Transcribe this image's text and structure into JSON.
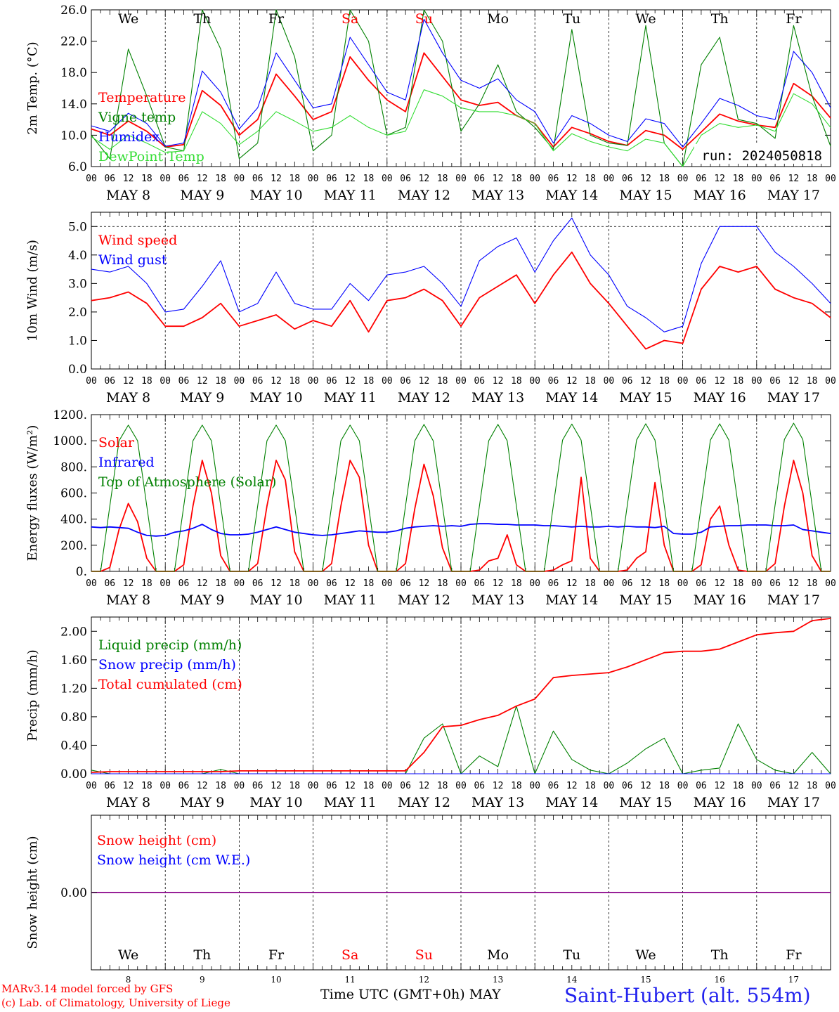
{
  "run_label": "run: 2024050818",
  "days": [
    {
      "abbr": "We",
      "date": "MAY  8",
      "num": "8",
      "weekend": false
    },
    {
      "abbr": "Th",
      "date": "MAY  9",
      "num": "9",
      "weekend": false
    },
    {
      "abbr": "Fr",
      "date": "MAY 10",
      "num": "10",
      "weekend": false
    },
    {
      "abbr": "Sa",
      "date": "MAY 11",
      "num": "11",
      "weekend": true
    },
    {
      "abbr": "Su",
      "date": "MAY 12",
      "num": "12",
      "weekend": true
    },
    {
      "abbr": "Mo",
      "date": "MAY 13",
      "num": "13",
      "weekend": false
    },
    {
      "abbr": "Tu",
      "date": "MAY 14",
      "num": "14",
      "weekend": false
    },
    {
      "abbr": "We",
      "date": "MAY 15",
      "num": "15",
      "weekend": false
    },
    {
      "abbr": "Th",
      "date": "MAY 16",
      "num": "16",
      "weekend": false
    },
    {
      "abbr": "Fr",
      "date": "MAY 17",
      "num": "17",
      "weekend": false
    }
  ],
  "hour_labels": [
    "00",
    "06",
    "12",
    "18"
  ],
  "end_hour_label": "00",
  "colors": {
    "red": "#ff0000",
    "green": "#008000",
    "blue": "#0000ff",
    "lightgreen": "#33dd33",
    "purple": "#880088"
  },
  "footer": {
    "model": "MARv3.14 model forced by GFS",
    "copyright": "(c) Lab. of Climatology, University of Liege",
    "xlabel": "Time UTC (GMT+0h) MAY",
    "station": "Saint-Hubert (alt. 554m)"
  },
  "chart_data": [
    {
      "id": "temp",
      "type": "line",
      "ylabel": "2m Temp. (°C)",
      "ylim": [
        6,
        26
      ],
      "yticks": [
        "6.0",
        "10.0",
        "14.0",
        "18.0",
        "22.0",
        "26.0"
      ],
      "legend": [
        "Temperature",
        "Vigne temp",
        "Humidex",
        "DewPoint Temp"
      ],
      "x_hours": [
        0,
        6,
        12,
        18,
        24,
        30,
        36,
        42,
        48,
        54,
        60,
        66,
        72,
        78,
        84,
        90,
        96,
        102,
        108,
        114,
        120,
        126,
        132,
        138,
        144,
        150,
        156,
        162,
        168,
        174,
        180,
        186,
        192,
        198,
        204,
        210,
        216,
        222,
        228,
        234,
        240
      ],
      "series": [
        {
          "name": "Temperature",
          "color": "red",
          "values": [
            10.8,
            10.0,
            11.8,
            10.5,
            8.5,
            8.8,
            15.7,
            13.8,
            10.0,
            12.0,
            17.8,
            15.0,
            12.0,
            13.0,
            20.0,
            17.0,
            14.5,
            13.0,
            20.5,
            17.5,
            14.5,
            13.8,
            14.2,
            12.5,
            11.5,
            8.5,
            11.0,
            10.2,
            9.2,
            8.7,
            10.6,
            10.0,
            8.2,
            10.4,
            12.7,
            11.8,
            11.3,
            11.0,
            16.6,
            15.0,
            12.2
          ]
        },
        {
          "name": "Vigne temp",
          "color": "green",
          "values": [
            10.0,
            7.0,
            21.0,
            15.0,
            8.5,
            8.0,
            26.0,
            21.0,
            7.0,
            9.0,
            26.0,
            20.0,
            8.0,
            10.0,
            26.0,
            22.0,
            10.0,
            11.0,
            26.0,
            22.0,
            10.5,
            14.0,
            19.0,
            13.0,
            11.0,
            8.2,
            23.5,
            10.0,
            9.0,
            8.7,
            24.0,
            9.0,
            6.0,
            19.0,
            22.5,
            12.0,
            11.5,
            9.6,
            24.0,
            15.0,
            8.6
          ]
        },
        {
          "name": "Humidex",
          "color": "blue",
          "values": [
            11.2,
            10.5,
            12.8,
            11.5,
            8.6,
            9.0,
            18.2,
            15.5,
            10.8,
            13.5,
            20.5,
            17.0,
            13.5,
            14.0,
            22.5,
            19.0,
            15.5,
            14.5,
            24.8,
            20.5,
            17.0,
            16.0,
            17.2,
            14.5,
            13.0,
            9.0,
            12.5,
            11.5,
            10.0,
            9.2,
            12.1,
            11.5,
            8.5,
            11.5,
            14.7,
            13.8,
            12.5,
            12.0,
            20.7,
            18.0,
            13.5
          ]
        },
        {
          "name": "DewPoint Temp",
          "color": "lightgreen",
          "values": [
            9.8,
            8.2,
            10.0,
            9.0,
            7.8,
            8.0,
            13.0,
            11.5,
            8.8,
            10.5,
            13.0,
            11.8,
            10.5,
            11.0,
            12.5,
            11.0,
            10.0,
            10.5,
            15.8,
            15.0,
            13.5,
            13.0,
            13.0,
            12.5,
            11.5,
            8.0,
            10.2,
            9.2,
            8.5,
            8.0,
            9.5,
            9.0,
            6.0,
            10.0,
            11.5,
            11.0,
            11.3,
            10.5,
            15.3,
            14.0,
            11.0
          ]
        }
      ]
    },
    {
      "id": "wind",
      "type": "line",
      "ylabel": "10m Wind (m/s)",
      "ylim": [
        0,
        5.5
      ],
      "yticks": [
        "0.0",
        "1.0",
        "2.0",
        "3.0",
        "4.0",
        "5.0"
      ],
      "legend": [
        "Wind speed",
        "Wind gust"
      ],
      "x_hours": [
        0,
        6,
        12,
        18,
        24,
        30,
        36,
        42,
        48,
        54,
        60,
        66,
        72,
        78,
        84,
        90,
        96,
        102,
        108,
        114,
        120,
        126,
        132,
        138,
        144,
        150,
        156,
        162,
        168,
        174,
        180,
        186,
        192,
        198,
        204,
        210,
        216,
        222,
        228,
        234,
        240
      ],
      "series": [
        {
          "name": "Wind speed",
          "color": "red",
          "values": [
            2.4,
            2.5,
            2.7,
            2.3,
            1.5,
            1.5,
            1.8,
            2.3,
            1.5,
            1.7,
            1.9,
            1.4,
            1.7,
            1.5,
            2.4,
            1.3,
            2.4,
            2.5,
            2.8,
            2.4,
            1.5,
            2.5,
            2.9,
            3.3,
            2.3,
            3.3,
            4.1,
            3.0,
            2.3,
            1.5,
            0.7,
            1.0,
            0.9,
            2.8,
            3.6,
            3.4,
            3.6,
            2.8,
            2.5,
            2.3,
            1.8
          ]
        },
        {
          "name": "Wind gust",
          "color": "blue",
          "values": [
            3.5,
            3.4,
            3.6,
            3.0,
            2.0,
            2.1,
            2.9,
            3.8,
            2.0,
            2.3,
            3.4,
            2.3,
            2.1,
            2.1,
            3.0,
            2.4,
            3.3,
            3.4,
            3.6,
            3.0,
            2.2,
            3.8,
            4.3,
            4.6,
            3.4,
            4.5,
            5.3,
            4.0,
            3.3,
            2.2,
            1.8,
            1.3,
            1.5,
            3.7,
            5.0,
            5.0,
            5.0,
            4.1,
            3.6,
            3.0,
            2.3
          ]
        }
      ]
    },
    {
      "id": "energy",
      "type": "line",
      "ylabel": "Energy fluxes (W/m²)",
      "ylim": [
        0,
        1200
      ],
      "yticks": [
        "0.",
        "200.",
        "400.",
        "600.",
        "800.",
        "1000.",
        "1200."
      ],
      "legend": [
        "Solar",
        "Infrared",
        "Top of Atmosphere (Solar)"
      ],
      "x_hours": [
        0,
        3,
        6,
        9,
        12,
        15,
        18,
        21,
        24,
        27,
        30,
        33,
        36,
        39,
        42,
        45,
        48,
        51,
        54,
        57,
        60,
        63,
        66,
        69,
        72,
        75,
        78,
        81,
        84,
        87,
        90,
        93,
        96,
        99,
        102,
        105,
        108,
        111,
        114,
        117,
        120,
        123,
        126,
        129,
        132,
        135,
        138,
        141,
        144,
        147,
        150,
        153,
        156,
        159,
        162,
        165,
        168,
        171,
        174,
        177,
        180,
        183,
        186,
        189,
        192,
        195,
        198,
        201,
        204,
        207,
        210,
        213,
        216,
        219,
        222,
        225,
        228,
        231,
        234,
        237,
        240
      ],
      "series": [
        {
          "name": "Solar",
          "color": "red",
          "values": [
            0,
            0,
            30,
            320,
            520,
            380,
            100,
            0,
            0,
            0,
            50,
            500,
            850,
            600,
            120,
            0,
            0,
            0,
            60,
            500,
            850,
            700,
            150,
            0,
            0,
            0,
            60,
            500,
            850,
            720,
            200,
            0,
            0,
            0,
            60,
            480,
            820,
            580,
            180,
            0,
            0,
            0,
            10,
            80,
            100,
            280,
            50,
            0,
            0,
            0,
            10,
            50,
            80,
            720,
            100,
            0,
            0,
            0,
            10,
            100,
            150,
            680,
            200,
            0,
            0,
            0,
            50,
            400,
            500,
            200,
            10,
            0,
            0,
            0,
            60,
            500,
            850,
            600,
            120,
            0,
            0
          ]
        },
        {
          "name": "Infrared",
          "color": "blue",
          "values": [
            340,
            335,
            340,
            335,
            330,
            300,
            275,
            270,
            275,
            300,
            310,
            330,
            360,
            320,
            290,
            280,
            280,
            285,
            300,
            320,
            340,
            320,
            300,
            290,
            280,
            275,
            280,
            290,
            300,
            310,
            305,
            300,
            300,
            310,
            330,
            340,
            345,
            350,
            345,
            350,
            345,
            360,
            365,
            365,
            360,
            360,
            355,
            355,
            355,
            350,
            350,
            345,
            340,
            345,
            340,
            340,
            345,
            340,
            345,
            340,
            340,
            335,
            345,
            290,
            285,
            285,
            300,
            340,
            345,
            350,
            350,
            355,
            355,
            355,
            350,
            350,
            355,
            320,
            310,
            300,
            290
          ]
        },
        {
          "name": "Top of Atmosphere (Solar)",
          "color": "green",
          "values": [
            0,
            0,
            500,
            1000,
            1120,
            1000,
            500,
            0,
            0,
            0,
            500,
            1000,
            1120,
            1000,
            500,
            0,
            0,
            0,
            500,
            1000,
            1120,
            1000,
            500,
            0,
            0,
            0,
            500,
            1000,
            1120,
            1000,
            500,
            0,
            0,
            0,
            500,
            1000,
            1125,
            1000,
            500,
            0,
            0,
            0,
            500,
            1000,
            1125,
            1000,
            500,
            0,
            0,
            0,
            505,
            1005,
            1128,
            1005,
            505,
            0,
            0,
            0,
            505,
            1005,
            1130,
            1005,
            505,
            0,
            0,
            0,
            505,
            1005,
            1130,
            1005,
            505,
            0,
            0,
            0,
            510,
            1010,
            1135,
            1010,
            510,
            0,
            0
          ]
        }
      ]
    },
    {
      "id": "precip",
      "type": "line",
      "ylabel": "Precip (mm/h)",
      "ylim": [
        0,
        2.2
      ],
      "yticks": [
        "0.00",
        "0.40",
        "0.80",
        "1.20",
        "1.60",
        "2.00"
      ],
      "legend": [
        "Liquid precip (mm/h)",
        "Snow precip (mm/h)",
        "Total cumulated (cm)"
      ],
      "x_hours": [
        0,
        6,
        12,
        18,
        24,
        30,
        36,
        42,
        48,
        54,
        60,
        66,
        72,
        78,
        84,
        90,
        96,
        102,
        108,
        114,
        120,
        126,
        132,
        138,
        144,
        150,
        156,
        162,
        168,
        174,
        180,
        186,
        192,
        198,
        204,
        210,
        216,
        222,
        228,
        234,
        240
      ],
      "series": [
        {
          "name": "Liquid precip (mm/h)",
          "color": "green",
          "values": [
            0.05,
            0.0,
            0.0,
            0.0,
            0.0,
            0.0,
            0.0,
            0.06,
            0.0,
            0.0,
            0.0,
            0.0,
            0.0,
            0.0,
            0.0,
            0.0,
            0.0,
            0.0,
            0.5,
            0.7,
            0.0,
            0.25,
            0.1,
            0.95,
            0.0,
            0.6,
            0.2,
            0.05,
            0.0,
            0.15,
            0.35,
            0.5,
            0.0,
            0.05,
            0.08,
            0.7,
            0.2,
            0.05,
            0.0,
            0.3,
            0.0
          ]
        },
        {
          "name": "Snow precip (mm/h)",
          "color": "blue",
          "values": [
            0,
            0,
            0,
            0,
            0,
            0,
            0,
            0,
            0,
            0,
            0,
            0,
            0,
            0,
            0,
            0,
            0,
            0,
            0,
            0,
            0,
            0,
            0,
            0,
            0,
            0,
            0,
            0,
            0,
            0,
            0,
            0,
            0,
            0,
            0,
            0,
            0,
            0,
            0,
            0,
            0
          ]
        },
        {
          "name": "Total cumulated (cm)",
          "color": "red",
          "values": [
            0.02,
            0.03,
            0.03,
            0.03,
            0.03,
            0.03,
            0.03,
            0.03,
            0.04,
            0.04,
            0.04,
            0.04,
            0.04,
            0.04,
            0.04,
            0.04,
            0.04,
            0.04,
            0.3,
            0.66,
            0.68,
            0.76,
            0.82,
            0.95,
            1.05,
            1.35,
            1.38,
            1.4,
            1.42,
            1.5,
            1.6,
            1.7,
            1.72,
            1.72,
            1.75,
            1.85,
            1.95,
            1.98,
            2.0,
            2.15,
            2.18
          ]
        }
      ]
    },
    {
      "id": "snow",
      "type": "line",
      "ylabel": "Snow height (cm)",
      "ylim": [
        -1,
        1
      ],
      "yticks": [
        "0.00"
      ],
      "legend": [
        "Snow height (cm)",
        "Snow height (cm W.E.)"
      ],
      "x_hours": [
        0,
        240
      ],
      "series": [
        {
          "name": "Snow height (cm)",
          "color": "red",
          "values": [
            0,
            0
          ]
        },
        {
          "name": "Snow height (cm W.E.)",
          "color": "blue",
          "values": [
            0,
            0
          ]
        }
      ]
    }
  ]
}
